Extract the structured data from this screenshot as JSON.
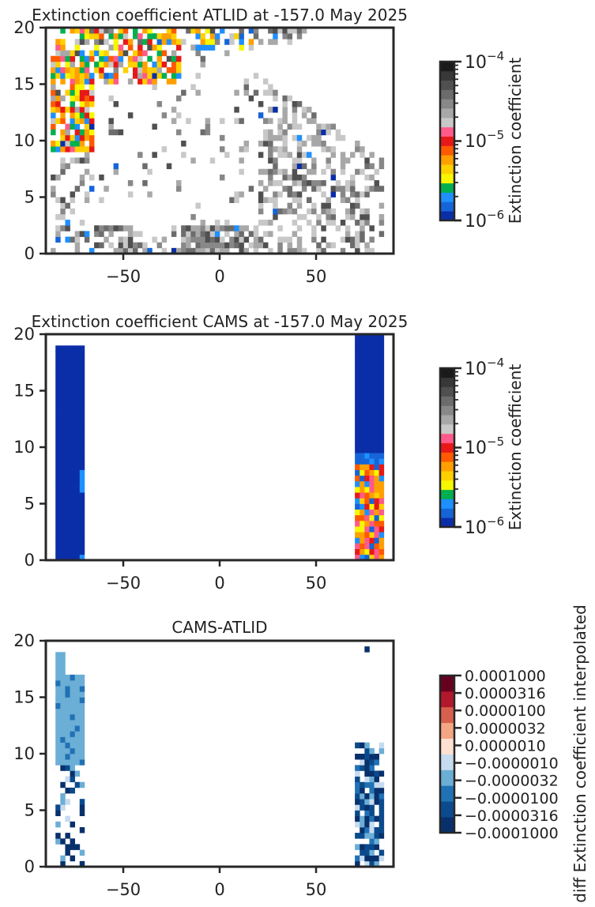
{
  "chart_data": [
    {
      "type": "heatmap",
      "title": "Extinction coefficient ATLID at -157.0 May 2025",
      "xlim": [
        -90,
        90
      ],
      "ylim": [
        0,
        20
      ],
      "xticks": [
        -50,
        0,
        50
      ],
      "xtick_labels": [
        "−50",
        "0",
        "50"
      ],
      "yticks": [
        0,
        5,
        10,
        15,
        20
      ],
      "ytick_labels": [
        "0",
        "5",
        "10",
        "15",
        "20"
      ],
      "colorbar": {
        "label": "Extinction coefficient",
        "scale": "log",
        "range": [
          1e-06,
          0.0001
        ],
        "tick_labels": [
          {
            "base": "10",
            "exp": "−4"
          },
          {
            "base": "10",
            "exp": "−5"
          },
          {
            "base": "10",
            "exp": "−6"
          }
        ]
      }
    },
    {
      "type": "heatmap",
      "title": "Extinction coefficient CAMS at -157.0 May 2025",
      "xlim": [
        -90,
        90
      ],
      "ylim": [
        0,
        20
      ],
      "xticks": [
        -50,
        0,
        50
      ],
      "xtick_labels": [
        "−50",
        "0",
        "50"
      ],
      "yticks": [
        0,
        5,
        10,
        15,
        20
      ],
      "ytick_labels": [
        "0",
        "5",
        "10",
        "15",
        "20"
      ],
      "colorbar": {
        "label": "Extinction coefficient",
        "scale": "log",
        "range": [
          1e-06,
          0.0001
        ],
        "tick_labels": [
          {
            "base": "10",
            "exp": "−4"
          },
          {
            "base": "10",
            "exp": "−5"
          },
          {
            "base": "10",
            "exp": "−6"
          }
        ]
      }
    },
    {
      "type": "heatmap",
      "title": "CAMS-ATLID",
      "xlim": [
        -90,
        90
      ],
      "ylim": [
        0,
        20
      ],
      "xticks": [
        -50,
        0,
        50
      ],
      "xtick_labels": [
        "−50",
        "0",
        "50"
      ],
      "yticks": [
        0,
        5,
        10,
        15,
        20
      ],
      "ytick_labels": [
        "0",
        "5",
        "10",
        "15",
        "20"
      ],
      "colorbar": {
        "label": "diff Extinction coefficient interpolated",
        "scale": "symlog",
        "tick_labels": [
          "0.0001000",
          "0.0000316",
          "0.0000100",
          "0.0000032",
          "0.0000010",
          "−0.0000010",
          "−0.0000032",
          "−0.0000100",
          "−0.0000316",
          "−0.0001000"
        ]
      }
    }
  ],
  "colors": {
    "ext_scale": [
      "#0a2ea8",
      "#1565d8",
      "#1e90ff",
      "#00b050",
      "#f7f700",
      "#ffd000",
      "#ffa000",
      "#ff5a00",
      "#e81818",
      "#ff5a8a",
      "#c8c8c8",
      "#a8a8a8",
      "#888888",
      "#6c6c6c",
      "#505050",
      "#383838",
      "#1a1a1a"
    ],
    "diff_scale": [
      "#08306b",
      "#0b4a8c",
      "#2171b5",
      "#6baed6",
      "#c6dbef",
      "#fde0d2",
      "#f4a582",
      "#d6604d",
      "#b2182b",
      "#67001f"
    ]
  }
}
